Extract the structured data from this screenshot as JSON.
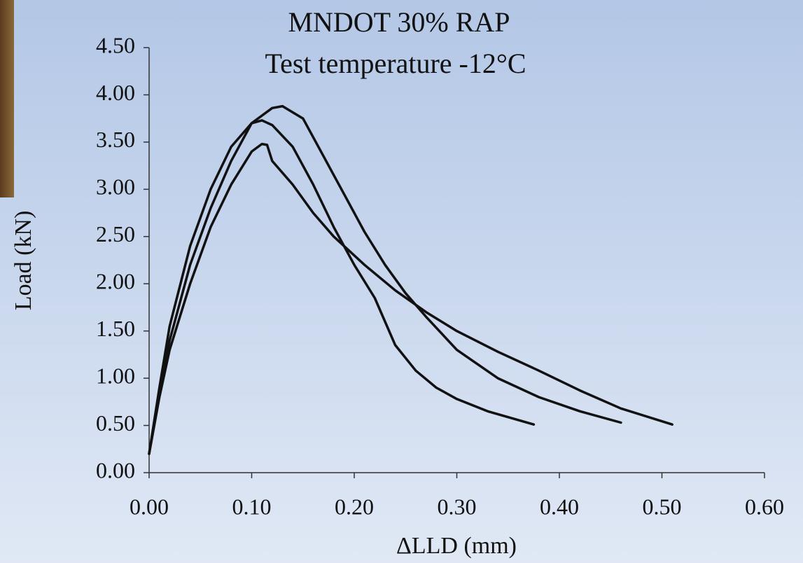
{
  "chart_data": {
    "type": "line",
    "title": "MNDOT 30% RAP",
    "subtitle": "Test temperature  -12°C",
    "x_label": "ΔLLD (mm)",
    "y_label": "Load (kN)",
    "xlim": [
      0,
      0.6
    ],
    "ylim": [
      0,
      4.5
    ],
    "xticks": [
      {
        "value": 0,
        "label": "0.00"
      },
      {
        "value": 0.1,
        "label": "0.10"
      },
      {
        "value": 0.2,
        "label": "0.20"
      },
      {
        "value": 0.3,
        "label": "0.30"
      },
      {
        "value": 0.4,
        "label": "0.40"
      },
      {
        "value": 0.5,
        "label": "0.50"
      },
      {
        "value": 0.6,
        "label": "0.60"
      }
    ],
    "yticks": [
      {
        "value": 0,
        "label": "0.00"
      },
      {
        "value": 0.5,
        "label": "0.50"
      },
      {
        "value": 1,
        "label": "1.00"
      },
      {
        "value": 1.5,
        "label": "1.50"
      },
      {
        "value": 2,
        "label": "2.00"
      },
      {
        "value": 2.5,
        "label": "2.50"
      },
      {
        "value": 3,
        "label": "3.00"
      },
      {
        "value": 3.5,
        "label": "3.50"
      },
      {
        "value": 4,
        "label": "4.00"
      },
      {
        "value": 4.5,
        "label": "4.50"
      }
    ],
    "grid": false,
    "series": [
      {
        "color": "#111111",
        "x": [
          0,
          0.01,
          0.02,
          0.04,
          0.06,
          0.08,
          0.1,
          0.11,
          0.115,
          0.12,
          0.14,
          0.16,
          0.18,
          0.21,
          0.24,
          0.27,
          0.3,
          0.34,
          0.38,
          0.42,
          0.46,
          0.51
        ],
        "values": [
          0.2,
          0.8,
          1.3,
          2.0,
          2.6,
          3.05,
          3.4,
          3.48,
          3.47,
          3.3,
          3.05,
          2.75,
          2.5,
          2.2,
          1.93,
          1.7,
          1.5,
          1.28,
          1.08,
          0.87,
          0.68,
          0.51
        ]
      },
      {
        "color": "#111111",
        "x": [
          0,
          0.01,
          0.02,
          0.04,
          0.06,
          0.08,
          0.1,
          0.11,
          0.12,
          0.14,
          0.16,
          0.18,
          0.2,
          0.22,
          0.24,
          0.26,
          0.28,
          0.3,
          0.33,
          0.375
        ],
        "values": [
          0.2,
          0.9,
          1.55,
          2.4,
          3.0,
          3.45,
          3.7,
          3.73,
          3.68,
          3.45,
          3.05,
          2.6,
          2.2,
          1.85,
          1.35,
          1.08,
          0.9,
          0.78,
          0.65,
          0.51
        ]
      },
      {
        "color": "#111111",
        "x": [
          0,
          0.01,
          0.02,
          0.04,
          0.06,
          0.08,
          0.1,
          0.12,
          0.13,
          0.15,
          0.17,
          0.19,
          0.21,
          0.23,
          0.25,
          0.27,
          0.3,
          0.34,
          0.38,
          0.42,
          0.46
        ],
        "values": [
          0.2,
          0.85,
          1.4,
          2.2,
          2.8,
          3.3,
          3.7,
          3.86,
          3.88,
          3.75,
          3.35,
          2.95,
          2.55,
          2.2,
          1.9,
          1.65,
          1.3,
          1.0,
          0.8,
          0.65,
          0.53
        ]
      }
    ]
  }
}
